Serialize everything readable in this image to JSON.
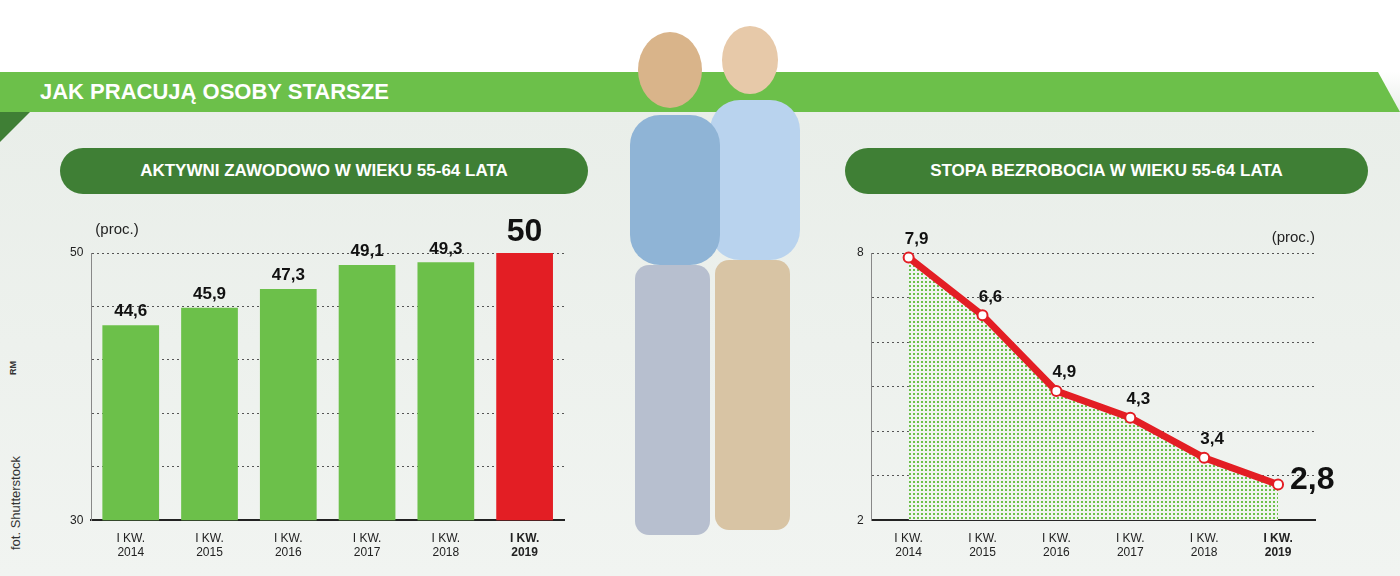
{
  "title": "JAK PRACUJĄ OSOBY STARSZE",
  "credit": "fot. Shutterstock",
  "logo": "RM",
  "chart_data": [
    {
      "type": "bar",
      "title": "AKTYWNI ZAWODOWO W WIEKU 55-64 LATA",
      "y_label": "(proc.)",
      "categories": [
        "I KW. 2014",
        "I KW. 2015",
        "I KW. 2016",
        "I KW. 2017",
        "I KW. 2018",
        "I KW. 2019"
      ],
      "values": [
        44.6,
        45.9,
        47.3,
        49.1,
        49.3,
        50
      ],
      "value_labels": [
        "44,6",
        "45,9",
        "47,3",
        "49,1",
        "49,3",
        "50"
      ],
      "colors": [
        "#6cc04a",
        "#6cc04a",
        "#6cc04a",
        "#6cc04a",
        "#6cc04a",
        "#e31e24"
      ],
      "ylim": [
        30,
        50
      ],
      "yticks": [
        30,
        50
      ],
      "minor_yticks": [
        34,
        38,
        42,
        46
      ],
      "grid": true,
      "data_labels": true
    },
    {
      "type": "line",
      "title": "STOPA BEZROBOCIA W WIEKU 55-64 LATA",
      "y_label": "(proc.)",
      "categories": [
        "I KW. 2014",
        "I KW. 2015",
        "I KW. 2016",
        "I KW. 2017",
        "I KW. 2018",
        "I KW. 2019"
      ],
      "values": [
        7.9,
        6.6,
        4.9,
        4.3,
        3.4,
        2.8
      ],
      "value_labels": [
        "7,9",
        "6,6",
        "4,9",
        "4,3",
        "3,4",
        "2,8"
      ],
      "color": "#e31e24",
      "marker": "circle",
      "ylim": [
        2,
        8
      ],
      "yticks": [
        2,
        8
      ],
      "minor_yticks": [
        3,
        4,
        5,
        6,
        7
      ],
      "grid": true,
      "data_labels": true
    }
  ]
}
